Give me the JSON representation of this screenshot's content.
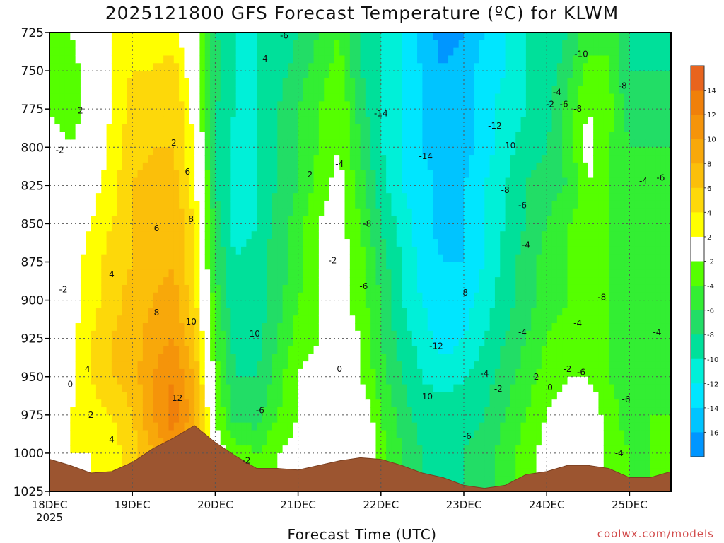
{
  "chart_data": {
    "type": "heatmap",
    "title": "2025121800 GFS Forecast Temperature (ºC) for KLWM",
    "xlabel": "Forecast Time (UTC)",
    "ylabel": "",
    "credit": "coolwx.com/models",
    "y_ticks": [
      "725",
      "750",
      "775",
      "800",
      "825",
      "850",
      "875",
      "900",
      "925",
      "950",
      "975",
      "1000",
      "1025"
    ],
    "y_values": [
      725,
      750,
      775,
      800,
      825,
      850,
      875,
      900,
      925,
      950,
      975,
      1000,
      1025
    ],
    "ylim": [
      725,
      1025
    ],
    "x_ticks": [
      "18DEC",
      "19DEC",
      "20DEC",
      "21DEC",
      "22DEC",
      "23DEC",
      "24DEC",
      "25DEC"
    ],
    "x_year": "2025",
    "xlim_hours": [
      0,
      180
    ],
    "grid": true,
    "colorbar": {
      "labels": [
        "14",
        "12",
        "10",
        "8",
        "6",
        "4",
        "2",
        "-2",
        "-4",
        "-6",
        "-8",
        "-10",
        "-12",
        "-14",
        "-16"
      ],
      "bounds": [
        16,
        14,
        12,
        10,
        8,
        6,
        4,
        2,
        -2,
        -4,
        -6,
        -8,
        -10,
        -12,
        -14,
        -16,
        -18
      ],
      "colors": [
        "#e8641e",
        "#f0800a",
        "#f5940a",
        "#f8a80a",
        "#fbbf0a",
        "#fdd80a",
        "#ffff00",
        "#ffffff",
        "#55ff00",
        "#33ee33",
        "#22dd66",
        "#00e09a",
        "#00f0d8",
        "#00e6ff",
        "#00c4ff",
        "#0096ff"
      ]
    },
    "temperature_profiles": {
      "pressure_levels": [
        725,
        750,
        775,
        800,
        825,
        850,
        875,
        900,
        925,
        950,
        975,
        1000,
        1025
      ],
      "times_hours": [
        0,
        6,
        12,
        18,
        24,
        30,
        36,
        42,
        48,
        54,
        60,
        66,
        72,
        78,
        84,
        90,
        96,
        102,
        108,
        114,
        120,
        126,
        132,
        138,
        144,
        150,
        156,
        162,
        168,
        174,
        180
      ],
      "temps_c": [
        [
          -4,
          -2,
          0,
          2,
          3,
          3,
          3,
          -1,
          -8,
          -10,
          -10,
          -10,
          -8,
          -6,
          -4,
          -8,
          -10,
          -12,
          -15,
          -17,
          -16,
          -14,
          -12,
          -10,
          -10,
          -8,
          -5,
          -4,
          -8,
          -9,
          -10
        ],
        [
          -3,
          -3,
          -1,
          2,
          4,
          4,
          5,
          0,
          -7,
          -10,
          -10,
          -9,
          -7,
          -5,
          -3,
          -8,
          -10,
          -12,
          -14,
          -16,
          -15,
          -13,
          -12,
          -10,
          -9,
          -7,
          -3,
          -4,
          -8,
          -8,
          -8
        ],
        [
          -2,
          -3,
          -1,
          2,
          5,
          5,
          6,
          1,
          -8,
          -10,
          -10,
          -8,
          -6,
          -4,
          -2,
          -7,
          -10,
          -12,
          -14,
          -15,
          -15,
          -13,
          -11,
          -10,
          -9,
          -5,
          -2,
          -3,
          -7,
          -7,
          -7
        ],
        [
          -1,
          -2,
          -1,
          3,
          5,
          6,
          6,
          2,
          -8,
          -11,
          -10,
          -8,
          -6,
          -4,
          -2,
          -6,
          -10,
          -12,
          -14,
          -15,
          -15,
          -13,
          -11,
          -9,
          -8,
          -5,
          -1,
          -4,
          -6,
          -6,
          -6
        ],
        [
          -1,
          0,
          1,
          3,
          6,
          7,
          7,
          3,
          -8,
          -11,
          -10,
          -8,
          -6,
          -3,
          -1,
          -5,
          -9,
          -12,
          -13,
          -15,
          -14,
          -12,
          -10,
          -8,
          -7,
          -6,
          -2,
          -4,
          -6,
          -5,
          -5
        ],
        [
          -2,
          0,
          2,
          4,
          6,
          7,
          8,
          4,
          -7,
          -11,
          -10,
          -7,
          -5,
          -2,
          -1,
          -4,
          -8,
          -11,
          -13,
          -15,
          -14,
          -12,
          -10,
          -8,
          -6,
          -4,
          -3,
          -4,
          -6,
          -5,
          -4
        ],
        [
          -2,
          1,
          3,
          5,
          6,
          7,
          8,
          4,
          -6,
          -10,
          -9,
          -7,
          -5,
          -2,
          -1,
          -3,
          -7,
          -10,
          -13,
          -14,
          -14,
          -12,
          -9,
          -7,
          -5,
          -4,
          -3,
          -4,
          -6,
          -5,
          -4
        ],
        [
          -1,
          1,
          3,
          5,
          7,
          8,
          9,
          5,
          -5,
          -10,
          -9,
          -7,
          -4,
          -2,
          -1,
          -3,
          -6,
          -10,
          -12,
          -14,
          -13,
          -11,
          -9,
          -7,
          -5,
          -4,
          -3,
          -4,
          -6,
          -5,
          -4
        ],
        [
          0,
          1,
          4,
          6,
          7,
          9,
          10,
          6,
          -4,
          -9,
          -9,
          -6,
          -3,
          -2,
          -1,
          -2,
          -6,
          -9,
          -11,
          -13,
          -12,
          -10,
          -8,
          -6,
          -4,
          -3,
          -3,
          -4,
          -5,
          -5,
          -4
        ],
        [
          2,
          1,
          4,
          6,
          7,
          10,
          12,
          8,
          -3,
          -8,
          -8,
          -5,
          -2,
          -1,
          0,
          -2,
          -5,
          -8,
          -10,
          -11,
          -10,
          -9,
          -7,
          -5,
          -3,
          -2,
          -2,
          -4,
          -5,
          -5,
          -4
        ],
        [
          2,
          2,
          3,
          4,
          6,
          10,
          13,
          9,
          -2,
          -7,
          -7,
          -4,
          -2,
          0,
          1,
          1,
          -4,
          -7,
          -9,
          -9,
          -9,
          -8,
          -6,
          -4,
          -2,
          -1,
          0,
          -3,
          -5,
          -4,
          -4
        ],
        [
          1,
          2,
          2,
          3,
          5,
          8,
          11,
          7,
          -1,
          -3,
          -4,
          -2,
          -1,
          0,
          1,
          1,
          -3,
          -6,
          -8,
          -8,
          -8,
          -7,
          -5,
          -3,
          -1,
          0,
          1,
          -3,
          -4,
          -4,
          -3
        ],
        [
          1,
          1,
          2,
          3,
          5,
          8,
          11,
          7,
          -1,
          -3,
          -4,
          -2,
          -1,
          0,
          1,
          1,
          -3,
          -6,
          -8,
          -8,
          -8,
          -7,
          -5,
          -3,
          -1,
          0,
          1,
          -3,
          -4,
          -4,
          -3
        ]
      ]
    },
    "terrain_surface_pressure": {
      "times_hours": [
        0,
        6,
        12,
        18,
        24,
        30,
        36,
        42,
        48,
        54,
        60,
        66,
        72,
        78,
        84,
        90,
        96,
        102,
        108,
        114,
        120,
        126,
        132,
        138,
        144,
        150,
        156,
        162,
        168,
        174,
        180
      ],
      "pressure_hpa": [
        1004,
        1008,
        1013,
        1012,
        1006,
        997,
        990,
        982,
        993,
        1002,
        1010,
        1010,
        1011,
        1008,
        1005,
        1003,
        1004,
        1008,
        1013,
        1016,
        1021,
        1023,
        1021,
        1014,
        1012,
        1008,
        1008,
        1010,
        1016,
        1016,
        1012
      ]
    },
    "contour_labels": [
      {
        "t": 9,
        "p": 776,
        "text": "2"
      },
      {
        "t": 3,
        "p": 802,
        "text": "-2"
      },
      {
        "t": 4,
        "p": 893,
        "text": "-2"
      },
      {
        "t": 6,
        "p": 955,
        "text": "0"
      },
      {
        "t": 12,
        "p": 975,
        "text": "2"
      },
      {
        "t": 11,
        "p": 945,
        "text": "4"
      },
      {
        "t": 18,
        "p": 991,
        "text": "4"
      },
      {
        "t": 18,
        "p": 883,
        "text": "4"
      },
      {
        "t": 31,
        "p": 853,
        "text": "6"
      },
      {
        "t": 31,
        "p": 908,
        "text": "8"
      },
      {
        "t": 36,
        "p": 797,
        "text": "2"
      },
      {
        "t": 40,
        "p": 816,
        "text": "6"
      },
      {
        "t": 41,
        "p": 847,
        "text": "8"
      },
      {
        "t": 41,
        "p": 914,
        "text": "10"
      },
      {
        "t": 37,
        "p": 964,
        "text": "12"
      },
      {
        "t": 57,
        "p": 1005,
        "text": "-2"
      },
      {
        "t": 61,
        "p": 972,
        "text": "-6"
      },
      {
        "t": 59,
        "p": 922,
        "text": "-10"
      },
      {
        "t": 62,
        "p": 742,
        "text": "-4"
      },
      {
        "t": 68,
        "p": 727,
        "text": "-6"
      },
      {
        "t": 75,
        "p": 818,
        "text": "-2"
      },
      {
        "t": 84,
        "p": 811,
        "text": "-4"
      },
      {
        "t": 82,
        "p": 874,
        "text": "-2"
      },
      {
        "t": 84,
        "p": 945,
        "text": "0"
      },
      {
        "t": 92,
        "p": 850,
        "text": "-8"
      },
      {
        "t": 91,
        "p": 891,
        "text": "-6"
      },
      {
        "t": 96,
        "p": 778,
        "text": "-14"
      },
      {
        "t": 109,
        "p": 806,
        "text": "-14"
      },
      {
        "t": 112,
        "p": 930,
        "text": "-12"
      },
      {
        "t": 109,
        "p": 963,
        "text": "-10"
      },
      {
        "t": 121,
        "p": 989,
        "text": "-6"
      },
      {
        "t": 120,
        "p": 895,
        "text": "-8"
      },
      {
        "t": 129,
        "p": 786,
        "text": "-12"
      },
      {
        "t": 133,
        "p": 799,
        "text": "-10"
      },
      {
        "t": 132,
        "p": 828,
        "text": "-8"
      },
      {
        "t": 126,
        "p": 948,
        "text": "-4"
      },
      {
        "t": 130,
        "p": 958,
        "text": "-2"
      },
      {
        "t": 137,
        "p": 838,
        "text": "-6"
      },
      {
        "t": 138,
        "p": 864,
        "text": "-4"
      },
      {
        "t": 137,
        "p": 921,
        "text": "-4"
      },
      {
        "t": 141,
        "p": 950,
        "text": "2"
      },
      {
        "t": 145,
        "p": 957,
        "text": "0"
      },
      {
        "t": 145,
        "p": 772,
        "text": "-2"
      },
      {
        "t": 147,
        "p": 764,
        "text": "-4"
      },
      {
        "t": 149,
        "p": 772,
        "text": "-6"
      },
      {
        "t": 153,
        "p": 775,
        "text": "-8"
      },
      {
        "t": 154,
        "p": 739,
        "text": "-10"
      },
      {
        "t": 150,
        "p": 945,
        "text": "-2"
      },
      {
        "t": 154,
        "p": 947,
        "text": "-6"
      },
      {
        "t": 153,
        "p": 915,
        "text": "-4"
      },
      {
        "t": 160,
        "p": 898,
        "text": "-8"
      },
      {
        "t": 166,
        "p": 760,
        "text": "-8"
      },
      {
        "t": 167,
        "p": 965,
        "text": "-6"
      },
      {
        "t": 165,
        "p": 1000,
        "text": "-4"
      },
      {
        "t": 172,
        "p": 822,
        "text": "-4"
      },
      {
        "t": 177,
        "p": 820,
        "text": "-6"
      },
      {
        "t": 176,
        "p": 921,
        "text": "-4"
      }
    ]
  }
}
